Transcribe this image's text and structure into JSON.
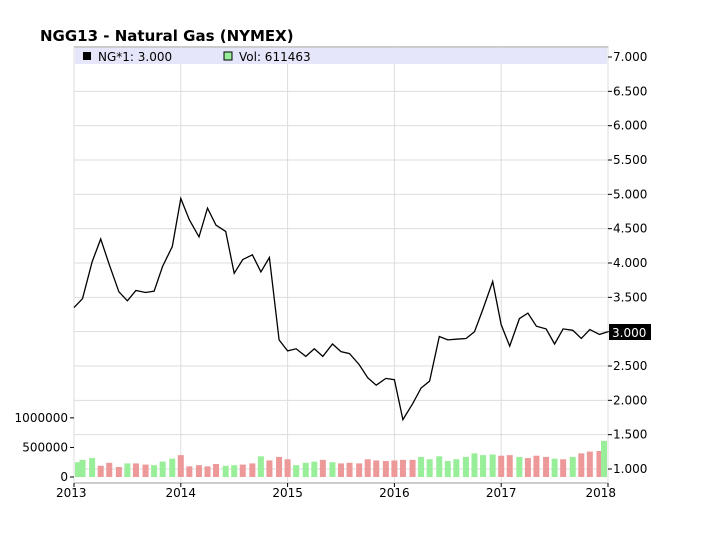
{
  "chart_data": {
    "type": "line",
    "title": "NGG13 - Natural Gas (NYMEX)",
    "legend": {
      "price_label": "NG*1: 3.000",
      "volume_label": "Vol: 611463",
      "placement": "top"
    },
    "colors": {
      "price_line": "#000000",
      "volume_up": "#99ee99",
      "volume_down": "#ee9999",
      "legend_bg": "#e6e6fa",
      "grid": "#dddddd"
    },
    "x_ticks": [
      "2013",
      "2014",
      "2015",
      "2016",
      "2017",
      "2018"
    ],
    "y_ticks": [
      "7.000",
      "6.500",
      "6.000",
      "5.500",
      "5.000",
      "4.500",
      "4.000",
      "3.500",
      "3.000",
      "2.500",
      "2.000",
      "1.500",
      "1.000"
    ],
    "y_range": [
      1.0,
      7.0
    ],
    "current_value": "3.000",
    "volume_ticks": [
      "1000000",
      "500000",
      "0"
    ],
    "volume_range": [
      0,
      1150000
    ],
    "x_range": [
      2013.0,
      2018.0
    ],
    "price_series": {
      "name": "NG*1",
      "x": [
        2013.0,
        2013.08,
        2013.17,
        2013.25,
        2013.33,
        2013.42,
        2013.5,
        2013.58,
        2013.67,
        2013.75,
        2013.83,
        2013.92,
        2014.0,
        2014.08,
        2014.17,
        2014.25,
        2014.33,
        2014.42,
        2014.5,
        2014.58,
        2014.67,
        2014.75,
        2014.83,
        2014.92,
        2015.0,
        2015.08,
        2015.17,
        2015.25,
        2015.33,
        2015.42,
        2015.5,
        2015.58,
        2015.67,
        2015.75,
        2015.83,
        2015.92,
        2016.0,
        2016.08,
        2016.17,
        2016.25,
        2016.33,
        2016.42,
        2016.5,
        2016.58,
        2016.67,
        2016.75,
        2016.83,
        2016.92,
        2017.0,
        2017.08,
        2017.17,
        2017.25,
        2017.33,
        2017.42,
        2017.5,
        2017.58,
        2017.67,
        2017.75,
        2017.83,
        2017.92,
        2018.0
      ],
      "values": [
        3.35,
        3.48,
        4.02,
        4.35,
        3.98,
        3.58,
        3.45,
        3.6,
        3.57,
        3.59,
        3.95,
        4.24,
        4.94,
        4.63,
        4.38,
        4.8,
        4.55,
        4.46,
        3.85,
        4.05,
        4.12,
        3.87,
        4.08,
        2.88,
        2.72,
        2.75,
        2.64,
        2.75,
        2.64,
        2.82,
        2.71,
        2.68,
        2.52,
        2.33,
        2.22,
        2.32,
        2.3,
        1.72,
        1.95,
        2.18,
        2.28,
        2.93,
        2.88,
        2.89,
        2.9,
        3.0,
        3.33,
        3.73,
        3.1,
        2.79,
        3.19,
        3.27,
        3.08,
        3.04,
        2.82,
        3.04,
        3.02,
        2.9,
        3.03,
        2.96,
        3.0
      ]
    },
    "volume_series": {
      "name": "Vol",
      "values": [
        250000,
        290000,
        320000,
        190000,
        240000,
        170000,
        230000,
        230000,
        210000,
        200000,
        260000,
        310000,
        370000,
        180000,
        200000,
        180000,
        220000,
        190000,
        200000,
        210000,
        230000,
        350000,
        280000,
        340000,
        300000,
        200000,
        240000,
        260000,
        290000,
        250000,
        230000,
        240000,
        230000,
        300000,
        280000,
        270000,
        280000,
        290000,
        290000,
        340000,
        300000,
        350000,
        270000,
        300000,
        340000,
        400000,
        370000,
        380000,
        360000,
        370000,
        340000,
        320000,
        360000,
        340000,
        310000,
        300000,
        340000,
        400000,
        430000,
        440000,
        611463
      ],
      "direction": [
        "up",
        "up",
        "up",
        "down",
        "down",
        "down",
        "up",
        "down",
        "down",
        "up",
        "up",
        "up",
        "down",
        "down",
        "down",
        "down",
        "down",
        "up",
        "up",
        "down",
        "down",
        "up",
        "down",
        "down",
        "down",
        "up",
        "up",
        "up",
        "down",
        "up",
        "down",
        "down",
        "down",
        "down",
        "down",
        "down",
        "down",
        "down",
        "down",
        "up",
        "up",
        "up",
        "up",
        "up",
        "up",
        "up",
        "up",
        "up",
        "down",
        "down",
        "up",
        "down",
        "down",
        "down",
        "up",
        "down",
        "up",
        "down",
        "down",
        "down",
        "up"
      ]
    }
  }
}
